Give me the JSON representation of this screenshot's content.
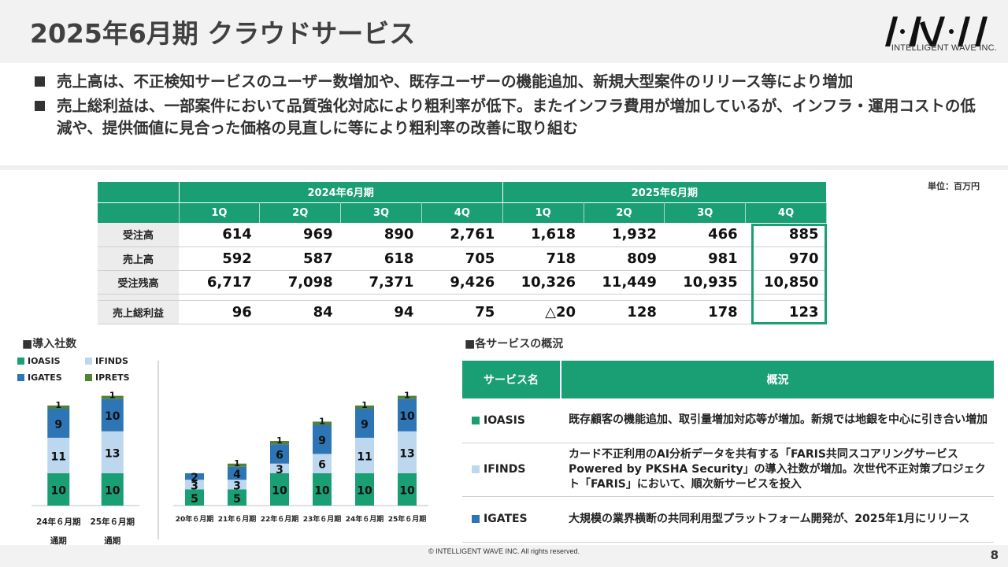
{
  "header": {
    "title": "2025年6月期 クラウドサービス",
    "logo_text": "INTELLIGENT WAVE INC."
  },
  "bullets": [
    "売上高は、不正検知サービスのユーザー数増加や、既存ユーザーの機能追加、新規大型案件のリリース等により増加",
    "売上総利益は、一部案件において品質強化対応により粗利率が低下。またインフラ費用が増加しているが、インフラ・運用コストの低減や、提供価値に見合った価格の見直しに等により粗利率の改善に取り組む"
  ],
  "unit": "単位：百万円",
  "fin_table": {
    "periods": [
      "2024年6月期",
      "2025年6月期"
    ],
    "quarters": [
      "1Q",
      "2Q",
      "3Q",
      "4Q",
      "1Q",
      "2Q",
      "3Q",
      "4Q"
    ],
    "rows": [
      {
        "label": "受注高",
        "values": [
          "614",
          "969",
          "890",
          "2,761",
          "1,618",
          "1,932",
          "466",
          "885"
        ]
      },
      {
        "label": "売上高",
        "values": [
          "592",
          "587",
          "618",
          "705",
          "718",
          "809",
          "981",
          "970"
        ]
      },
      {
        "label": "受注残高",
        "values": [
          "6,717",
          "7,098",
          "7,371",
          "9,426",
          "10,326",
          "11,449",
          "10,935",
          "10,850"
        ]
      },
      {
        "label": "売上総利益",
        "values": [
          "96",
          "84",
          "94",
          "75",
          "△20",
          "128",
          "178",
          "123"
        ]
      }
    ]
  },
  "adoption": {
    "title": "■導入社数",
    "legend": [
      "IOASIS",
      "IFINDS",
      "IGATES",
      "IPRETS"
    ],
    "colors": {
      "IOASIS": "#1a9e74",
      "IFINDS": "#bdd7ee",
      "IGATES": "#2e75b6",
      "IPRETS": "#548235"
    }
  },
  "chart_data": [
    {
      "type": "bar",
      "stacked": true,
      "categories": [
        "24年６月期通期",
        "25年６月期通期"
      ],
      "series": [
        {
          "name": "IOASIS",
          "values": [
            10,
            10
          ]
        },
        {
          "name": "IFINDS",
          "values": [
            11,
            13
          ]
        },
        {
          "name": "IGATES",
          "values": [
            9,
            10
          ]
        },
        {
          "name": "IPRETS",
          "values": [
            1,
            1
          ]
        }
      ]
    },
    {
      "type": "bar",
      "stacked": true,
      "categories": [
        "20年６月期",
        "21年６月期",
        "22年６月期",
        "23年６月期",
        "24年６月期",
        "25年６月期"
      ],
      "series": [
        {
          "name": "IOASIS",
          "values": [
            5,
            5,
            10,
            10,
            10,
            10
          ]
        },
        {
          "name": "IFINDS",
          "values": [
            3,
            3,
            3,
            6,
            11,
            13
          ]
        },
        {
          "name": "IGATES",
          "values": [
            2,
            4,
            6,
            9,
            9,
            10
          ]
        },
        {
          "name": "IPRETS",
          "values": [
            0,
            1,
            1,
            1,
            1,
            1
          ]
        }
      ]
    }
  ],
  "services": {
    "title": "■各サービスの概況",
    "header": [
      "サービス名",
      "概況"
    ],
    "rows": [
      {
        "name": "IOASIS",
        "color": "#1a9e74",
        "desc": "既存顧客の機能追加、取引量増加対応等が増加。新規では地銀を中心に引き合い増加"
      },
      {
        "name": "IFINDS",
        "color": "#bdd7ee",
        "desc": "カード不正利用のAI分析データを共有する「FARIS共同スコアリングサービスPowered by PKSHA Security」の導入社数が増加。次世代不正対策プロジェクト「FARIS」において、順次新サービスを投入"
      },
      {
        "name": "IGATES",
        "color": "#2e75b6",
        "desc": "大規模の業界横断の共同利用型プラットフォーム開発が、2025年1月にリリース"
      }
    ]
  },
  "footer": {
    "copyright": "© INTELLIGENT WAVE INC. All rights reserved.",
    "page": "8"
  }
}
